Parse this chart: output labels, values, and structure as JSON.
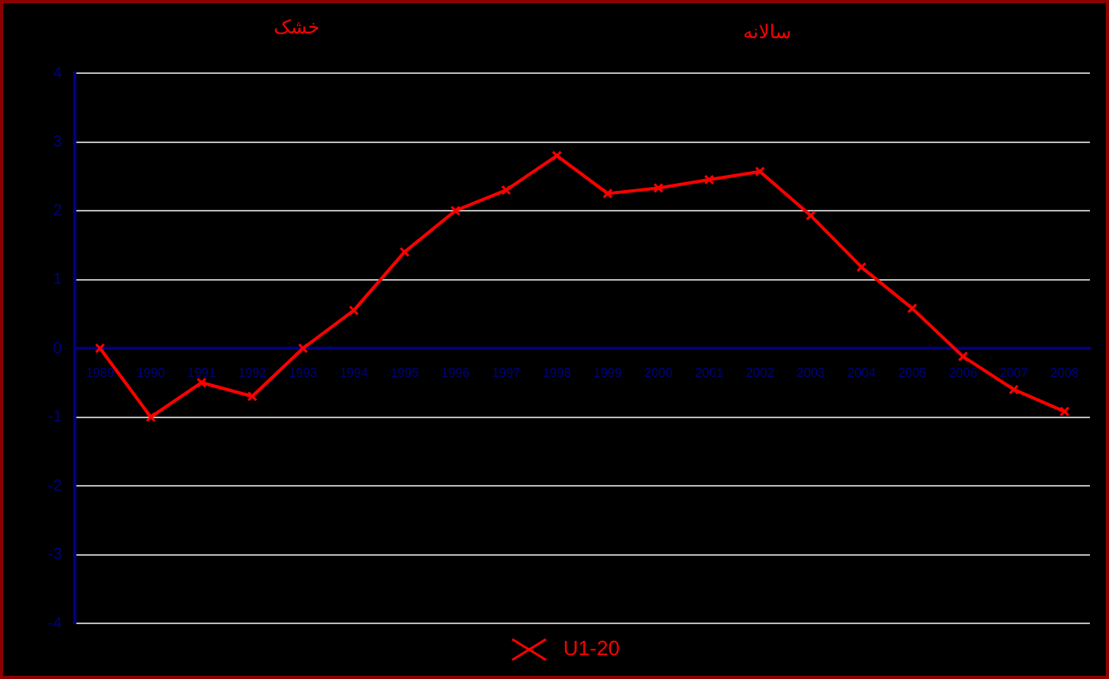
{
  "chart_data": {
    "type": "line",
    "title": "خشک",
    "subtitle": "سالانه",
    "categories": [
      "1989",
      "1990",
      "1991",
      "1992",
      "1993",
      "1994",
      "1995",
      "1996",
      "1997",
      "1998",
      "1999",
      "2000",
      "2001",
      "2002",
      "2003",
      "2004",
      "2005",
      "2006",
      "2007",
      "2008"
    ],
    "series": [
      {
        "name": "U1-20",
        "color": "#ff0000",
        "values": [
          0,
          -1,
          -0.5,
          -0.7,
          0,
          0.55,
          1.4,
          2,
          2.3,
          2.8,
          2.25,
          2.33,
          2.45,
          2.57,
          1.93,
          1.18,
          0.58,
          -0.12,
          -0.6,
          -0.92
        ]
      }
    ],
    "ylim": [
      -4,
      4
    ],
    "yticks": [
      -4,
      -3,
      -2,
      -1,
      0,
      1,
      2,
      3,
      4
    ],
    "grid": "y",
    "legend": "bottom",
    "marker": "cross",
    "line_style": "solid"
  }
}
